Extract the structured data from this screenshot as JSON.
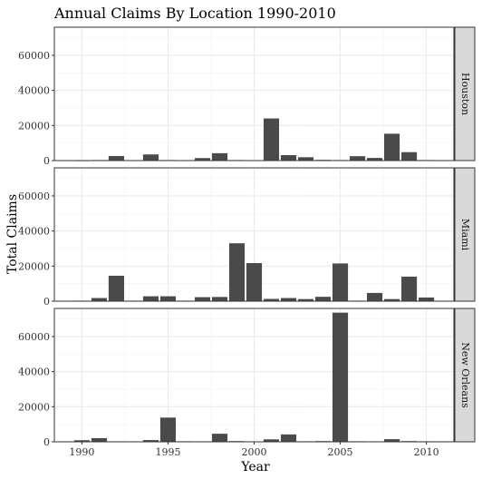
{
  "chart_data": {
    "type": "bar",
    "title": "Annual Claims By Location 1990-2010",
    "xlabel": "Year",
    "ylabel": "Total Claims",
    "x": [
      1990,
      1991,
      1992,
      1993,
      1994,
      1995,
      1996,
      1997,
      1998,
      1999,
      2000,
      2001,
      2002,
      2003,
      2004,
      2005,
      2006,
      2007,
      2008,
      2009,
      2010
    ],
    "xticks": [
      1990,
      1995,
      2000,
      2005,
      2010
    ],
    "xticklabels": [
      "1990",
      "1995",
      "2000",
      "2005",
      "2010"
    ],
    "ylim": [
      0,
      76000
    ],
    "yticks": [
      0,
      20000,
      40000,
      60000
    ],
    "yticklabels": [
      "0",
      "20000",
      "40000",
      "60000"
    ],
    "grid": true,
    "series": [
      {
        "name": "Houston",
        "values": [
          100,
          300,
          2600,
          200,
          3500,
          300,
          200,
          1400,
          4200,
          300,
          200,
          24000,
          3100,
          1900,
          400,
          300,
          2500,
          1500,
          15300,
          4800,
          300
        ]
      },
      {
        "name": "Miami",
        "values": [
          300,
          1800,
          14500,
          300,
          2800,
          2800,
          300,
          2300,
          2400,
          33000,
          21700,
          1300,
          1800,
          1200,
          2500,
          21500,
          300,
          4700,
          1200,
          14000,
          2100
        ]
      },
      {
        "name": "New Orleans",
        "values": [
          900,
          2100,
          200,
          200,
          1000,
          13800,
          300,
          200,
          4600,
          400,
          200,
          1400,
          4200,
          300,
          400,
          73600,
          300,
          200,
          1500,
          400,
          300
        ]
      }
    ]
  },
  "colors": {
    "bar": "#4a4a4a",
    "panel_border": "#333333",
    "grid_major": "#ebebeb",
    "grid_minor": "#f4f4f4",
    "strip_fill": "#d9d9d9"
  }
}
